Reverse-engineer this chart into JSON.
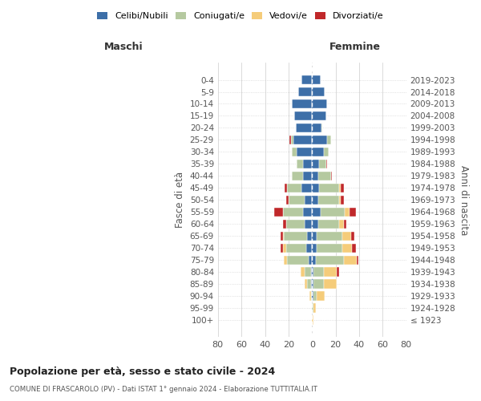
{
  "age_groups": [
    "100+",
    "95-99",
    "90-94",
    "85-89",
    "80-84",
    "75-79",
    "70-74",
    "65-69",
    "60-64",
    "55-59",
    "50-54",
    "45-49",
    "40-44",
    "35-39",
    "30-34",
    "25-29",
    "20-24",
    "15-19",
    "10-14",
    "5-9",
    "0-4"
  ],
  "birth_years": [
    "≤ 1923",
    "1924-1928",
    "1929-1933",
    "1934-1938",
    "1939-1943",
    "1944-1948",
    "1949-1953",
    "1954-1958",
    "1959-1963",
    "1964-1968",
    "1969-1973",
    "1974-1978",
    "1979-1983",
    "1984-1988",
    "1989-1993",
    "1994-1998",
    "1999-2003",
    "2004-2008",
    "2009-2013",
    "2014-2018",
    "2019-2023"
  ],
  "colors": {
    "celibi": "#3d6fa8",
    "coniugati": "#b5c9a0",
    "vedovi": "#f5cc7a",
    "divorziati": "#c0282a"
  },
  "maschi": {
    "celibi": [
      0,
      0,
      0,
      1,
      1,
      3,
      5,
      4,
      6,
      8,
      6,
      9,
      8,
      8,
      13,
      16,
      14,
      15,
      17,
      12,
      9
    ],
    "coniugati": [
      0,
      0,
      1,
      3,
      5,
      18,
      17,
      20,
      16,
      17,
      14,
      12,
      9,
      5,
      4,
      2,
      0,
      0,
      0,
      0,
      0
    ],
    "vedovi": [
      0,
      0,
      1,
      2,
      4,
      3,
      3,
      1,
      0,
      0,
      0,
      0,
      0,
      0,
      0,
      0,
      0,
      0,
      0,
      0,
      0
    ],
    "divorziati": [
      0,
      0,
      0,
      0,
      0,
      0,
      2,
      2,
      3,
      7,
      2,
      2,
      0,
      0,
      0,
      1,
      0,
      0,
      0,
      0,
      0
    ]
  },
  "femmine": {
    "celibi": [
      0,
      0,
      1,
      1,
      1,
      3,
      4,
      4,
      5,
      7,
      5,
      6,
      5,
      6,
      10,
      13,
      8,
      12,
      13,
      11,
      7
    ],
    "coniugati": [
      0,
      1,
      3,
      9,
      9,
      24,
      22,
      22,
      18,
      21,
      18,
      17,
      11,
      6,
      4,
      3,
      1,
      0,
      0,
      0,
      0
    ],
    "vedovi": [
      1,
      2,
      7,
      11,
      11,
      11,
      8,
      7,
      4,
      4,
      1,
      1,
      0,
      0,
      0,
      0,
      0,
      0,
      0,
      0,
      0
    ],
    "divorziati": [
      0,
      0,
      0,
      0,
      2,
      1,
      3,
      3,
      2,
      5,
      3,
      3,
      1,
      1,
      0,
      0,
      0,
      0,
      0,
      0,
      0
    ]
  },
  "xlim": 80,
  "title": "Popolazione per età, sesso e stato civile - 2024",
  "subtitle": "COMUNE DI FRASCAROLO (PV) - Dati ISTAT 1° gennaio 2024 - Elaborazione TUTTITALIA.IT",
  "ylabel_left": "Fasce di età",
  "ylabel_right": "Anni di nascita",
  "legend_labels": [
    "Celibi/Nubili",
    "Coniugati/e",
    "Vedovi/e",
    "Divorziati/e"
  ],
  "maschi_label": "Maschi",
  "femmine_label": "Femmine",
  "background_color": "#ffffff",
  "grid_color": "#cccccc"
}
